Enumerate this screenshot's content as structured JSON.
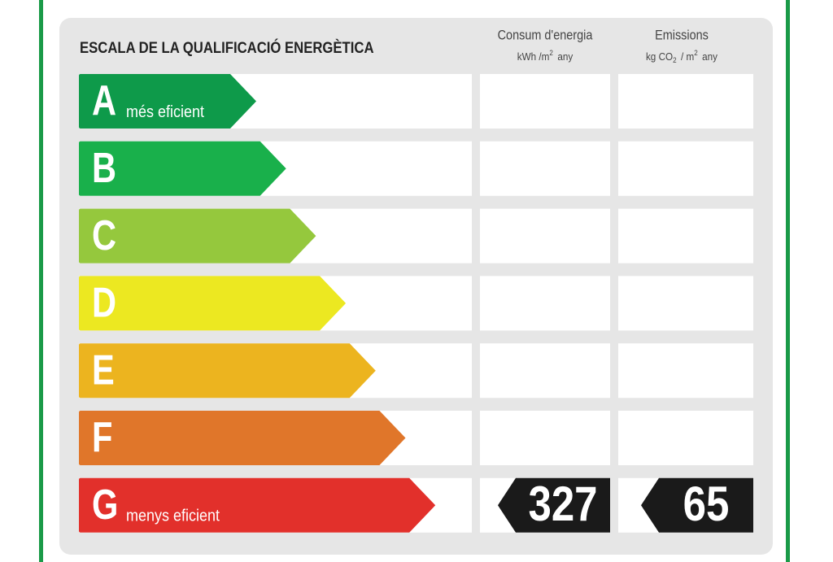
{
  "title": "ESCALA DE LA QUALIFICACIÓ ENERGÈTICA",
  "columns": [
    {
      "heading": "Consum d'energia",
      "unit_parts": [
        "kWh /m",
        "2",
        "any"
      ]
    },
    {
      "heading": "Emissions",
      "unit_parts": [
        "kg CO",
        "2",
        "/ m",
        "2",
        "any"
      ]
    }
  ],
  "rows": [
    {
      "letter": "A",
      "label": "més eficient",
      "color": "#0e9a4a"
    },
    {
      "letter": "B",
      "color": "#19b04b"
    },
    {
      "letter": "C",
      "color": "#95c83d"
    },
    {
      "letter": "D",
      "color": "#ece821"
    },
    {
      "letter": "E",
      "color": "#ecb41f"
    },
    {
      "letter": "F",
      "color": "#e0762a"
    },
    {
      "letter": "G",
      "label": "menys eficient",
      "color": "#e2302b",
      "consumption": 327,
      "emissions": 65
    }
  ]
}
